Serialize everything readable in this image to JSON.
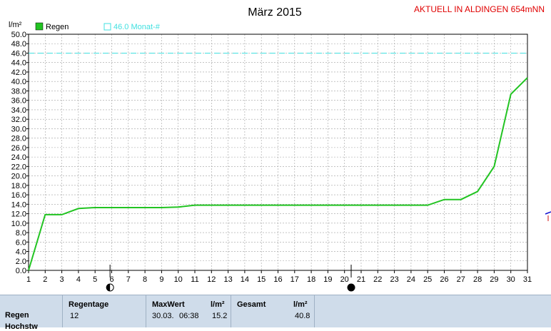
{
  "header": {
    "title": "März 2015",
    "station": "AKTUELL IN ALDINGEN 654mNN"
  },
  "legend": {
    "series_label": "Regen",
    "reference_label": "46.0 Monat-#"
  },
  "colors": {
    "series": "#22c422",
    "reference": "#40e0e0",
    "station": "#e00000",
    "panel": "#cfdcea"
  },
  "chart_data": {
    "type": "line",
    "title": "März 2015",
    "ylabel": "l/m²",
    "xlabel": "",
    "xlim": [
      1,
      31
    ],
    "ylim": [
      0,
      50
    ],
    "y_ticks": [
      "0.0",
      "2.0",
      "4.0",
      "6.0",
      "8.0",
      "10.0",
      "12.0",
      "14.0",
      "16.0",
      "18.0",
      "20.0",
      "22.0",
      "24.0",
      "26.0",
      "28.0",
      "30.0",
      "32.0",
      "34.0",
      "36.0",
      "38.0",
      "40.0",
      "42.0",
      "44.0",
      "46.0",
      "48.0",
      "50.0"
    ],
    "x_ticks": [
      "1",
      "2",
      "3",
      "4",
      "5",
      "6",
      "7",
      "8",
      "9",
      "10",
      "11",
      "12",
      "13",
      "14",
      "15",
      "16",
      "17",
      "18",
      "19",
      "20",
      "21",
      "22",
      "23",
      "24",
      "25",
      "26",
      "27",
      "28",
      "29",
      "30",
      "31"
    ],
    "grid": true,
    "series": [
      {
        "name": "Regen",
        "x": [
          1,
          2,
          3,
          4,
          5,
          6,
          7,
          8,
          9,
          10,
          11,
          12,
          13,
          14,
          15,
          16,
          17,
          18,
          19,
          20,
          21,
          22,
          23,
          24,
          25,
          26,
          27,
          28,
          29,
          30,
          31
        ],
        "values": [
          0.0,
          11.8,
          11.8,
          13.1,
          13.3,
          13.3,
          13.3,
          13.3,
          13.3,
          13.4,
          13.8,
          13.8,
          13.8,
          13.8,
          13.8,
          13.8,
          13.8,
          13.8,
          13.8,
          13.8,
          13.8,
          13.8,
          13.8,
          13.8,
          13.8,
          15.0,
          15.0,
          16.7,
          22.0,
          37.3,
          40.8
        ]
      }
    ],
    "reference_line": {
      "name": "46.0 Monat-#",
      "value": 46.0
    },
    "moon_phases": [
      {
        "x": 5.9,
        "phase": "first-quarter"
      },
      {
        "x": 20.4,
        "phase": "new-moon"
      }
    ]
  },
  "stats": {
    "row_label": "Regen",
    "row_label_2": "Hochstw",
    "regentage_header": "Regentage",
    "regentage_value": "12",
    "maxwert_header": "MaxWert",
    "maxwert_unit": "l/m²",
    "maxwert_date": "30.03.",
    "maxwert_time": "06:38",
    "maxwert_value": "15.2",
    "gesamt_header": "Gesamt",
    "gesamt_unit": "l/m²",
    "gesamt_value": "40.8"
  }
}
